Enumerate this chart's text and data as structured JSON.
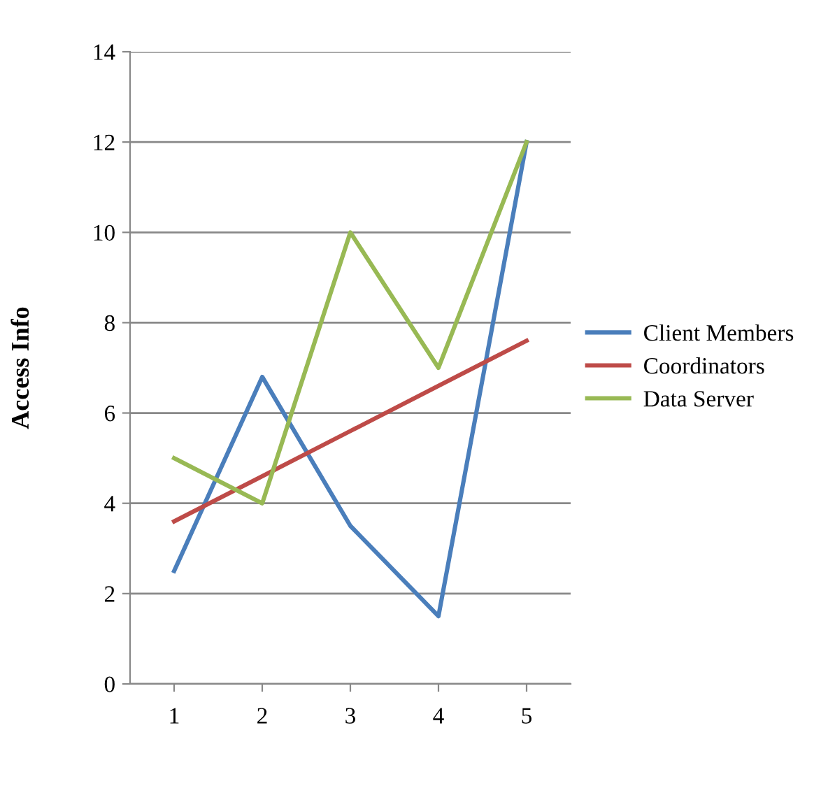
{
  "chart_data": {
    "type": "line",
    "ylabel": "Access Info",
    "categories": [
      "1",
      "2",
      "3",
      "4",
      "5"
    ],
    "series": [
      {
        "name": "Client Members",
        "color": "#4a7ebb",
        "values": [
          2.5,
          6.8,
          3.5,
          1.5,
          12
        ]
      },
      {
        "name": "Coordinators",
        "color": "#be4b48",
        "values": [
          3.6,
          4.6,
          5.6,
          6.6,
          7.6
        ]
      },
      {
        "name": "Data Server",
        "color": "#98b954",
        "values": [
          5,
          4,
          10,
          7,
          12
        ]
      }
    ],
    "ylim": [
      0,
      14
    ],
    "yticks": [
      0,
      2,
      4,
      6,
      8,
      10,
      12,
      14
    ],
    "grid": "y",
    "legend": "right",
    "marker": "none",
    "line_style": "solid"
  }
}
